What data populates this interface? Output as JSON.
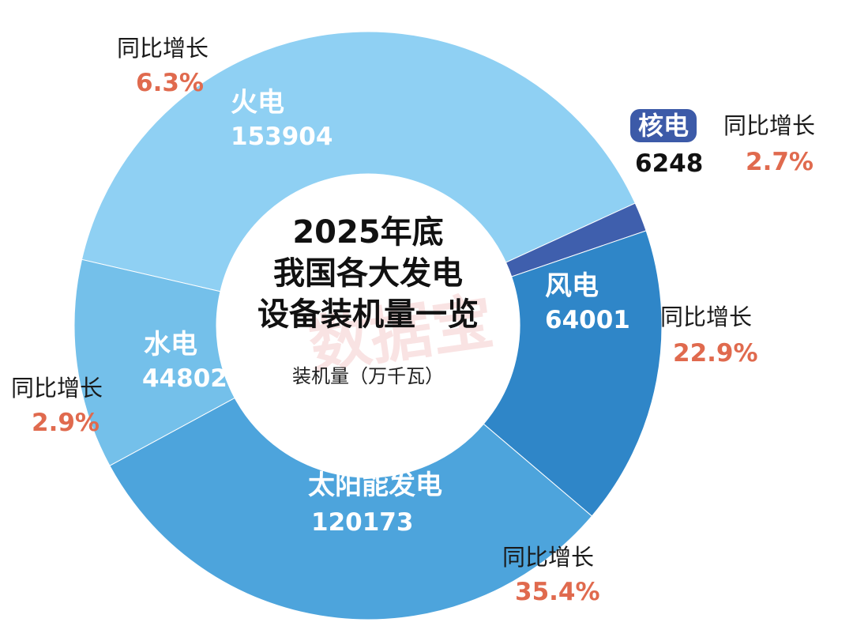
{
  "chart_data": {
    "type": "donut",
    "title_lines": [
      "2025年底",
      "我国各大发电",
      "设备装机量一览"
    ],
    "unit_label": "装机量（万千瓦）",
    "growth_label": "同比增长",
    "categories": [
      "火电",
      "核电",
      "风电",
      "太阳能发电",
      "水电"
    ],
    "values": [
      153904,
      6248,
      64001,
      120173,
      44802
    ],
    "value_labels": [
      "153904",
      "6248",
      "64001",
      "120173",
      "44802"
    ],
    "growth": [
      "6.3%",
      "2.7%",
      "22.9%",
      "35.4%",
      "2.9%"
    ],
    "colors": [
      "#8fd0f3",
      "#3f5fad",
      "#2f86c8",
      "#4da4dc",
      "#74c0ea"
    ],
    "growth_color": "#e06a4e"
  },
  "watermark": "数据宝"
}
